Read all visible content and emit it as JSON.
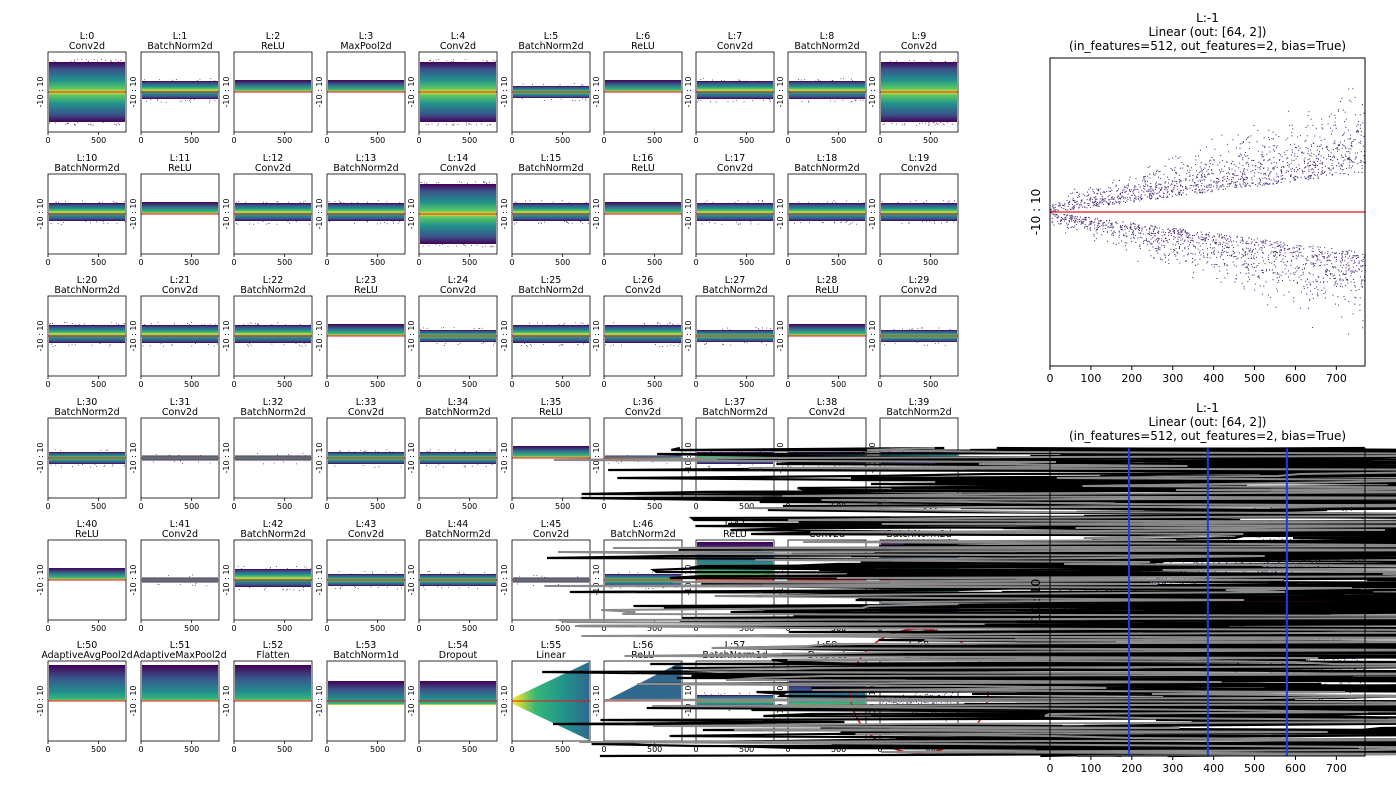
{
  "grid": {
    "layers": [
      {
        "id": "L:0",
        "name": "Conv2d",
        "style": "wide"
      },
      {
        "id": "L:1",
        "name": "BatchNorm2d",
        "style": "mid"
      },
      {
        "id": "L:2",
        "name": "ReLU",
        "style": "relu"
      },
      {
        "id": "L:3",
        "name": "MaxPool2d",
        "style": "relu"
      },
      {
        "id": "L:4",
        "name": "Conv2d",
        "style": "wide"
      },
      {
        "id": "L:5",
        "name": "BatchNorm2d",
        "style": "narrow"
      },
      {
        "id": "L:6",
        "name": "ReLU",
        "style": "relu"
      },
      {
        "id": "L:7",
        "name": "Conv2d",
        "style": "mid"
      },
      {
        "id": "L:8",
        "name": "BatchNorm2d",
        "style": "mid"
      },
      {
        "id": "L:9",
        "name": "Conv2d",
        "style": "wide"
      },
      {
        "id": "L:10",
        "name": "BatchNorm2d",
        "style": "mid"
      },
      {
        "id": "L:11",
        "name": "ReLU",
        "style": "relu"
      },
      {
        "id": "L:12",
        "name": "Conv2d",
        "style": "mid"
      },
      {
        "id": "L:13",
        "name": "BatchNorm2d",
        "style": "mid"
      },
      {
        "id": "L:14",
        "name": "Conv2d",
        "style": "wide"
      },
      {
        "id": "L:15",
        "name": "BatchNorm2d",
        "style": "mid"
      },
      {
        "id": "L:16",
        "name": "ReLU",
        "style": "relu"
      },
      {
        "id": "L:17",
        "name": "Conv2d",
        "style": "mid"
      },
      {
        "id": "L:18",
        "name": "BatchNorm2d",
        "style": "mid"
      },
      {
        "id": "L:19",
        "name": "Conv2d",
        "style": "mid"
      },
      {
        "id": "L:20",
        "name": "BatchNorm2d",
        "style": "mid"
      },
      {
        "id": "L:21",
        "name": "Conv2d",
        "style": "mid"
      },
      {
        "id": "L:22",
        "name": "BatchNorm2d",
        "style": "mid"
      },
      {
        "id": "L:23",
        "name": "ReLU",
        "style": "relu"
      },
      {
        "id": "L:24",
        "name": "Conv2d",
        "style": "narrow"
      },
      {
        "id": "L:25",
        "name": "BatchNorm2d",
        "style": "mid"
      },
      {
        "id": "L:26",
        "name": "Conv2d",
        "style": "mid"
      },
      {
        "id": "L:27",
        "name": "BatchNorm2d",
        "style": "narrow"
      },
      {
        "id": "L:28",
        "name": "ReLU",
        "style": "relu"
      },
      {
        "id": "L:29",
        "name": "Conv2d",
        "style": "narrow"
      },
      {
        "id": "L:30",
        "name": "BatchNorm2d",
        "style": "narrow"
      },
      {
        "id": "L:31",
        "name": "Conv2d",
        "style": "thin"
      },
      {
        "id": "L:32",
        "name": "BatchNorm2d",
        "style": "thin"
      },
      {
        "id": "L:33",
        "name": "Conv2d",
        "style": "narrow"
      },
      {
        "id": "L:34",
        "name": "BatchNorm2d",
        "style": "narrow"
      },
      {
        "id": "L:35",
        "name": "ReLU",
        "style": "relu"
      },
      {
        "id": "L:36",
        "name": "Conv2d",
        "style": "thin"
      },
      {
        "id": "L:37",
        "name": "BatchNorm2d",
        "style": "narrow"
      },
      {
        "id": "L:38",
        "name": "Conv2d",
        "style": "narrow"
      },
      {
        "id": "L:39",
        "name": "BatchNorm2d",
        "style": "narrow"
      },
      {
        "id": "L:40",
        "name": "ReLU",
        "style": "relu"
      },
      {
        "id": "L:41",
        "name": "Conv2d",
        "style": "thin"
      },
      {
        "id": "L:42",
        "name": "BatchNorm2d",
        "style": "mid"
      },
      {
        "id": "L:43",
        "name": "Conv2d",
        "style": "narrow"
      },
      {
        "id": "L:44",
        "name": "BatchNorm2d",
        "style": "narrow"
      },
      {
        "id": "L:45",
        "name": "Conv2d",
        "style": "thin"
      },
      {
        "id": "L:46",
        "name": "BatchNorm2d",
        "style": "narrow"
      },
      {
        "id": "L:47",
        "name": "ReLU",
        "style": "relugreat"
      },
      {
        "id": "L:48",
        "name": "Conv2d",
        "style": "line"
      },
      {
        "id": "L:49",
        "name": "BatchNorm2d",
        "style": "full"
      },
      {
        "id": "L:50",
        "name": "AdaptiveAvgPool2d",
        "style": "pool"
      },
      {
        "id": "L:51",
        "name": "AdaptiveMaxPool2d",
        "style": "pool"
      },
      {
        "id": "L:52",
        "name": "Flatten",
        "style": "pool"
      },
      {
        "id": "L:53",
        "name": "BatchNorm1d",
        "style": "bn1d"
      },
      {
        "id": "L:54",
        "name": "Dropout",
        "style": "bn1d"
      },
      {
        "id": "L:55",
        "name": "Linear",
        "style": "funnel"
      },
      {
        "id": "L:56",
        "name": "ReLU",
        "style": "reluwedge"
      },
      {
        "id": "L:57",
        "name": "BatchNorm1d",
        "style": "narrow"
      },
      {
        "id": "L:58",
        "name": "Dropout",
        "style": "bn1d"
      },
      {
        "id": "L:59",
        "name": "Linear",
        "style": "sparse"
      }
    ],
    "ytick_label": "-10 : 10",
    "xtick_labels": [
      "0",
      "500"
    ],
    "highlight_layer": "L:59",
    "highlight_color": "#e8141c"
  },
  "colors": {
    "zero_line": "#e8141c",
    "scatter": "#3b1f6e",
    "boundary": "#1f3ce8",
    "trace_black": "#000000",
    "trace_gray": "#8a8a8a"
  },
  "chart_data": [
    {
      "type": "scatter",
      "panel": "top",
      "title_lines": [
        "L:-1",
        "Linear  (out: [64, 2])",
        "(in_features=512, out_features=2, bias=True)"
      ],
      "ytick_label": "-10 : 10",
      "xticks": [
        0,
        100,
        200,
        300,
        400,
        500,
        600,
        700
      ],
      "xlim": [
        0,
        770
      ]
    },
    {
      "type": "scatter",
      "panel": "bottom",
      "title_lines": [
        "L:-1",
        "Linear  (out: [64, 2])",
        "(in_features=512, out_features=2, bias=True)"
      ],
      "ytick_label": "-10 : 10",
      "xticks": [
        0,
        100,
        200,
        300,
        400,
        500,
        600,
        700
      ],
      "xlim": [
        0,
        770
      ],
      "vlines": [
        193,
        386,
        579
      ]
    }
  ]
}
